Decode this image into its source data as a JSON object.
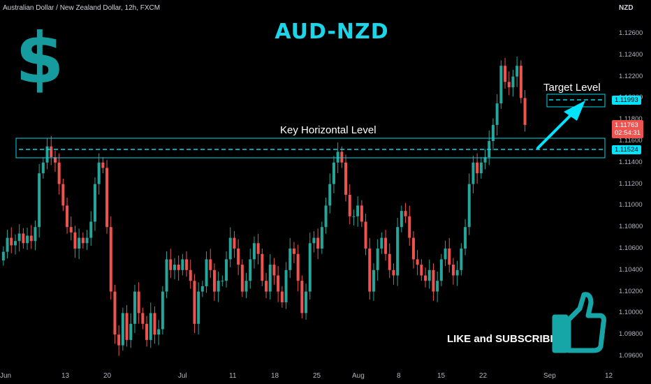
{
  "header": {
    "symbol_title": "Australian Dollar / New Zealand Dollar, 12h, FXCM",
    "headline": "AUD-NZD",
    "dollar_glyph": "$"
  },
  "annotations": {
    "key_level_label": "Key Horizontal Level",
    "target_level_label": "Target Level",
    "cta_label": "LIKE and SUBSCRIBE",
    "key_level_value": 1.11524,
    "key_zone_range": [
      1.1144,
      1.1162
    ],
    "target_level_value": 1.11993,
    "target_zone_range": [
      1.1194,
      1.1204
    ],
    "icon_thumb": "thumbs-up-icon",
    "icon_dollar": "dollar-sign-icon",
    "icon_arrow": "arrow-up-right-icon"
  },
  "price_axis": {
    "currency": "NZD",
    "ticks": [
      "1.12600",
      "1.12400",
      "1.12200",
      "1.12000",
      "1.11800",
      "1.11600",
      "1.11400",
      "1.11200",
      "1.11000",
      "1.10800",
      "1.10600",
      "1.10400",
      "1.10200",
      "1.10000",
      "1.09800",
      "1.09600"
    ],
    "badges": {
      "target": "1.11993",
      "key": "1.11524",
      "current_price": "1.11763",
      "countdown": "02:54:31"
    }
  },
  "time_axis": {
    "ticks": [
      "Jun",
      "13",
      "20",
      "Jul",
      "11",
      "18",
      "25",
      "Aug",
      "8",
      "15",
      "22",
      "Sep",
      "12"
    ]
  },
  "colors": {
    "up": "#26a69a",
    "down": "#ef5350",
    "accent": "#00e5ff",
    "title": "#1ad6e8",
    "background": "#000000"
  },
  "chart_data": {
    "type": "candlestick",
    "title": "AUD-NZD",
    "ylabel": "NZD",
    "ylim": [
      1.0955,
      1.1275
    ],
    "close_series": [
      1.1057,
      1.107,
      1.1063,
      1.1067,
      1.1074,
      1.1065,
      1.1072,
      1.1067,
      1.108,
      1.113,
      1.114,
      1.1155,
      1.1145,
      1.114,
      1.112,
      1.11,
      1.108,
      1.1075,
      1.106,
      1.107,
      1.1065,
      1.107,
      1.1085,
      1.112,
      1.114,
      1.1135,
      1.108,
      1.102,
      1.098,
      1.097,
      1.1,
      1.0975,
      1.099,
      1.102,
      1.1,
      1.099,
      1.0975,
      1.1,
      1.098,
      1.0985,
      1.102,
      1.105,
      1.104,
      1.1045,
      1.104,
      1.105,
      1.104,
      1.103,
      1.099,
      1.102,
      1.1025,
      1.105,
      1.104,
      1.102,
      1.103,
      1.103,
      1.105,
      1.107,
      1.106,
      1.1045,
      1.102,
      1.103,
      1.105,
      1.1065,
      1.1055,
      1.103,
      1.102,
      1.1045,
      1.1035,
      1.102,
      1.101,
      1.104,
      1.106,
      1.1055,
      1.103,
      1.1,
      1.102,
      1.1065,
      1.107,
      1.106,
      1.108,
      1.11,
      1.112,
      1.114,
      1.115,
      1.114,
      1.111,
      1.109,
      1.109,
      1.11,
      1.1085,
      1.106,
      1.102,
      1.104,
      1.106,
      1.107,
      1.1055,
      1.104,
      1.1035,
      1.108,
      1.1095,
      1.109,
      1.107,
      1.105,
      1.1045,
      1.1035,
      1.103,
      1.104,
      1.102,
      1.103,
      1.105,
      1.106,
      1.1045,
      1.1035,
      1.104,
      1.106,
      1.108,
      1.112,
      1.114,
      1.113,
      1.114,
      1.1145,
      1.116,
      1.1175,
      1.1195,
      1.123,
      1.1215,
      1.121,
      1.122,
      1.123,
      1.12,
      1.1175
    ]
  }
}
